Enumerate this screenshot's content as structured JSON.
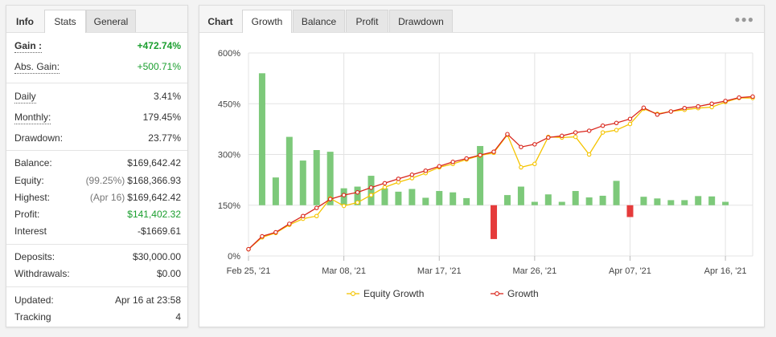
{
  "left_tabs": [
    {
      "label": "Info"
    },
    {
      "label": "Stats"
    },
    {
      "label": "General"
    }
  ],
  "stats": {
    "gain": {
      "label": "Gain :",
      "value": "+472.74%"
    },
    "abs_gain": {
      "label": "Abs. Gain:",
      "value": "+500.71%"
    },
    "daily": {
      "label": "Daily",
      "value": "3.41%"
    },
    "monthly": {
      "label": "Monthly:",
      "value": "179.45%"
    },
    "drawdown": {
      "label": "Drawdown:",
      "value": "23.77%"
    },
    "balance": {
      "label": "Balance:",
      "value": "$169,642.42"
    },
    "equity": {
      "label": "Equity:",
      "note": "(99.25%)",
      "value": "$168,366.93"
    },
    "highest": {
      "label": "Highest:",
      "note": "(Apr 16)",
      "value": "$169,642.42"
    },
    "profit": {
      "label": "Profit:",
      "value": "$141,402.32"
    },
    "interest": {
      "label": "Interest",
      "value": "-$1669.61"
    },
    "deposits": {
      "label": "Deposits:",
      "value": "$30,000.00"
    },
    "withdrawals": {
      "label": "Withdrawals:",
      "value": "$0.00"
    },
    "updated": {
      "label": "Updated:",
      "value": "Apr 16 at 23:58"
    },
    "tracking": {
      "label": "Tracking",
      "value": "4"
    }
  },
  "right_tabs": [
    {
      "label": "Chart"
    },
    {
      "label": "Growth"
    },
    {
      "label": "Balance"
    },
    {
      "label": "Profit"
    },
    {
      "label": "Drawdown"
    }
  ],
  "menu_icon": "more-dots-icon",
  "chart_data": {
    "type": "bar+line",
    "x_tick_labels": [
      "Feb 25, '21",
      "Mar 08, '21",
      "Mar 17, '21",
      "Mar 26, '21",
      "Apr 07, '21",
      "Apr 16, '21"
    ],
    "x_tick_index": [
      0,
      7,
      14,
      21,
      28,
      35
    ],
    "y_tick_labels": [
      "0%",
      "150%",
      "300%",
      "450%",
      "600%"
    ],
    "ylim": [
      0,
      600
    ],
    "bar_baseline": 150,
    "colors": {
      "bar_positive": "#7dc97a",
      "bar_negative": "#e53b3b",
      "equity_growth": "#f5c400",
      "growth": "#d9261c"
    },
    "bars": [
      {
        "i": 1,
        "value": 540
      },
      {
        "i": 2,
        "value": 232
      },
      {
        "i": 3,
        "value": 352
      },
      {
        "i": 4,
        "value": 282
      },
      {
        "i": 5,
        "value": 313
      },
      {
        "i": 6,
        "value": 308
      },
      {
        "i": 7,
        "value": 200
      },
      {
        "i": 8,
        "value": 205
      },
      {
        "i": 9,
        "value": 237
      },
      {
        "i": 10,
        "value": 200
      },
      {
        "i": 11,
        "value": 190
      },
      {
        "i": 12,
        "value": 198
      },
      {
        "i": 13,
        "value": 172
      },
      {
        "i": 14,
        "value": 192
      },
      {
        "i": 15,
        "value": 188
      },
      {
        "i": 16,
        "value": 171
      },
      {
        "i": 17,
        "value": 325
      },
      {
        "i": 18,
        "value": 50
      },
      {
        "i": 19,
        "value": 180
      },
      {
        "i": 20,
        "value": 205
      },
      {
        "i": 21,
        "value": 160
      },
      {
        "i": 22,
        "value": 182
      },
      {
        "i": 23,
        "value": 160
      },
      {
        "i": 24,
        "value": 192
      },
      {
        "i": 25,
        "value": 173
      },
      {
        "i": 26,
        "value": 178
      },
      {
        "i": 27,
        "value": 222
      },
      {
        "i": 28,
        "value": 115
      },
      {
        "i": 29,
        "value": 175
      },
      {
        "i": 30,
        "value": 170
      },
      {
        "i": 31,
        "value": 165
      },
      {
        "i": 32,
        "value": 165
      },
      {
        "i": 33,
        "value": 177
      },
      {
        "i": 34,
        "value": 176
      },
      {
        "i": 35,
        "value": 160
      }
    ],
    "series": [
      {
        "name": "Equity Growth",
        "values": [
          20,
          55,
          68,
          92,
          110,
          118,
          170,
          148,
          158,
          180,
          203,
          218,
          230,
          245,
          262,
          272,
          285,
          297,
          305,
          358,
          262,
          272,
          352,
          350,
          352,
          300,
          365,
          372,
          390,
          435,
          420,
          427,
          432,
          437,
          440,
          455,
          467,
          467
        ]
      },
      {
        "name": "Growth",
        "values": [
          20,
          58,
          70,
          95,
          118,
          142,
          168,
          180,
          188,
          202,
          215,
          228,
          240,
          252,
          265,
          278,
          288,
          298,
          308,
          360,
          322,
          330,
          350,
          355,
          365,
          370,
          385,
          393,
          405,
          438,
          418,
          427,
          437,
          442,
          450,
          458,
          468,
          471
        ]
      }
    ]
  }
}
